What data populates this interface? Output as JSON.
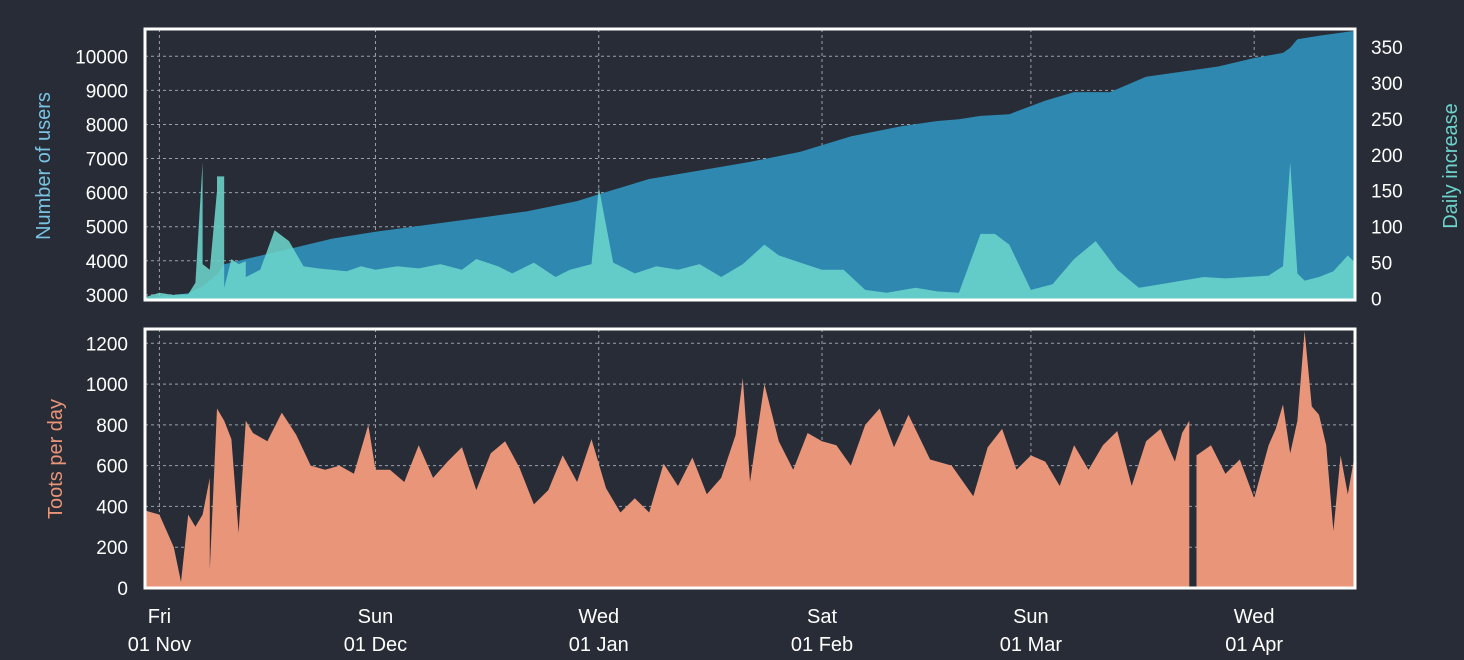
{
  "colors": {
    "background": "#282c36",
    "users": "#2e88b0",
    "daily": "#6bd4cb",
    "toots": "#e8957a",
    "users_axis_label": "#79c3e3",
    "daily_axis_label": "#6bd4cb",
    "toots_axis_label": "#e8957a",
    "frame": "#ffffff",
    "grid": "#9aa0aa"
  },
  "x_axis": {
    "range": [
      "2019-10-30",
      "2020-04-15"
    ],
    "ticks": [
      {
        "date": "2019-11-01",
        "weekday": "Fri",
        "label": "01 Nov"
      },
      {
        "date": "2019-12-01",
        "weekday": "Sun",
        "label": "01 Dec"
      },
      {
        "date": "2020-01-01",
        "weekday": "Wed",
        "label": "01 Jan"
      },
      {
        "date": "2020-02-01",
        "weekday": "Sat",
        "label": "01 Feb"
      },
      {
        "date": "2020-03-01",
        "weekday": "Sun",
        "label": "01 Mar"
      },
      {
        "date": "2020-04-01",
        "weekday": "Wed",
        "label": "01 Apr"
      }
    ]
  },
  "chart_data": [
    {
      "type": "area",
      "ylabel": "Number of users",
      "ylim": [
        2850,
        10800
      ],
      "yticks": [
        "3000",
        "4000",
        "5000",
        "6000",
        "7000",
        "8000",
        "9000",
        "10000"
      ],
      "x": [
        "2019-10-30",
        "2019-11-05",
        "2019-11-06",
        "2019-11-07",
        "2019-11-09",
        "2019-11-10",
        "2019-11-12",
        "2019-11-15",
        "2019-11-20",
        "2019-11-25",
        "2019-12-01",
        "2019-12-08",
        "2019-12-15",
        "2019-12-22",
        "2019-12-29",
        "2020-01-01",
        "2020-01-08",
        "2020-01-15",
        "2020-01-22",
        "2020-01-29",
        "2020-02-05",
        "2020-02-12",
        "2020-02-17",
        "2020-02-20",
        "2020-02-23",
        "2020-02-27",
        "2020-03-03",
        "2020-03-07",
        "2020-03-12",
        "2020-03-17",
        "2020-03-22",
        "2020-03-27",
        "2020-04-01",
        "2020-04-05",
        "2020-04-06",
        "2020-04-07",
        "2020-04-10",
        "2020-04-15"
      ],
      "series": [
        {
          "values": [
            2900,
            3050,
            3150,
            3250,
            3600,
            3900,
            4000,
            4150,
            4400,
            4650,
            4850,
            5050,
            5250,
            5450,
            5750,
            5950,
            6400,
            6650,
            6900,
            7200,
            7650,
            7950,
            8100,
            8150,
            8250,
            8300,
            8700,
            8950,
            8950,
            9400,
            9550,
            9700,
            9950,
            10100,
            10250,
            10500,
            10600,
            10750
          ]
        }
      ]
    },
    {
      "type": "area",
      "ylabel": "Daily increase",
      "ylim": [
        -2,
        375
      ],
      "yticks": [
        "0",
        "50",
        "100",
        "150",
        "200",
        "250",
        "300",
        "350"
      ],
      "x": [
        "2019-10-30",
        "2019-11-01",
        "2019-11-03",
        "2019-11-04",
        "2019-11-05",
        "2019-11-06",
        "2019-11-07",
        "2019-11-07",
        "2019-11-08",
        "2019-11-09",
        "2019-11-09",
        "2019-11-10",
        "2019-11-10",
        "2019-11-11",
        "2019-11-12",
        "2019-11-13",
        "2019-11-13",
        "2019-11-15",
        "2019-11-17",
        "2019-11-19",
        "2019-11-21",
        "2019-11-23",
        "2019-11-25",
        "2019-11-27",
        "2019-11-29",
        "2019-12-01",
        "2019-12-04",
        "2019-12-07",
        "2019-12-10",
        "2019-12-13",
        "2019-12-15",
        "2019-12-18",
        "2019-12-20",
        "2019-12-23",
        "2019-12-26",
        "2019-12-28",
        "2019-12-31",
        "2020-01-01",
        "2020-01-03",
        "2020-01-06",
        "2020-01-09",
        "2020-01-12",
        "2020-01-15",
        "2020-01-18",
        "2020-01-21",
        "2020-01-24",
        "2020-01-26",
        "2020-01-29",
        "2020-02-01",
        "2020-02-04",
        "2020-02-07",
        "2020-02-10",
        "2020-02-14",
        "2020-02-17",
        "2020-02-20",
        "2020-02-23",
        "2020-02-25",
        "2020-02-27",
        "2020-03-01",
        "2020-03-04",
        "2020-03-07",
        "2020-03-10",
        "2020-03-13",
        "2020-03-16",
        "2020-03-19",
        "2020-03-22",
        "2020-03-25",
        "2020-03-28",
        "2020-03-31",
        "2020-04-03",
        "2020-04-05",
        "2020-04-06",
        "2020-04-07",
        "2020-04-08",
        "2020-04-10",
        "2020-04-12",
        "2020-04-14",
        "2020-04-15"
      ],
      "series": [
        {
          "values": [
            2,
            8,
            5,
            6,
            6,
            22,
            190,
            48,
            40,
            150,
            170,
            170,
            15,
            55,
            48,
            52,
            30,
            40,
            95,
            80,
            45,
            42,
            40,
            38,
            45,
            40,
            45,
            42,
            48,
            40,
            55,
            45,
            35,
            50,
            30,
            40,
            48,
            155,
            50,
            35,
            45,
            40,
            48,
            30,
            48,
            75,
            60,
            50,
            40,
            40,
            12,
            8,
            15,
            10,
            8,
            90,
            90,
            75,
            12,
            20,
            55,
            80,
            40,
            15,
            20,
            25,
            30,
            28,
            30,
            32,
            45,
            190,
            35,
            25,
            30,
            38,
            60,
            50
          ]
        }
      ]
    },
    {
      "type": "area",
      "ylabel": "Toots per day",
      "ylim": [
        0,
        1270
      ],
      "yticks": [
        "0",
        "200",
        "400",
        "600",
        "800",
        "1000",
        "1200"
      ],
      "x": [
        "2019-10-30",
        "2019-11-01",
        "2019-11-02",
        "2019-11-03",
        "2019-11-04",
        "2019-11-05",
        "2019-11-06",
        "2019-11-07",
        "2019-11-08",
        "2019-11-08",
        "2019-11-09",
        "2019-11-10",
        "2019-11-11",
        "2019-11-12",
        "2019-11-13",
        "2019-11-14",
        "2019-11-16",
        "2019-11-18",
        "2019-11-20",
        "2019-11-22",
        "2019-11-24",
        "2019-11-26",
        "2019-11-28",
        "2019-11-30",
        "2019-12-01",
        "2019-12-03",
        "2019-12-05",
        "2019-12-07",
        "2019-12-09",
        "2019-12-11",
        "2019-12-13",
        "2019-12-15",
        "2019-12-17",
        "2019-12-19",
        "2019-12-21",
        "2019-12-23",
        "2019-12-25",
        "2019-12-27",
        "2019-12-29",
        "2019-12-31",
        "2020-01-02",
        "2020-01-04",
        "2020-01-06",
        "2020-01-08",
        "2020-01-10",
        "2020-01-12",
        "2020-01-14",
        "2020-01-16",
        "2020-01-18",
        "2020-01-20",
        "2020-01-21",
        "2020-01-22",
        "2020-01-24",
        "2020-01-26",
        "2020-01-28",
        "2020-01-30",
        "2020-02-01",
        "2020-02-03",
        "2020-02-05",
        "2020-02-07",
        "2020-02-09",
        "2020-02-11",
        "2020-02-13",
        "2020-02-16",
        "2020-02-19",
        "2020-02-22",
        "2020-02-24",
        "2020-02-26",
        "2020-02-28",
        "2020-03-01",
        "2020-03-03",
        "2020-03-05",
        "2020-03-07",
        "2020-03-09",
        "2020-03-11",
        "2020-03-13",
        "2020-03-15",
        "2020-03-17",
        "2020-03-19",
        "2020-03-21",
        "2020-03-22",
        "2020-03-23",
        "2020-03-23",
        "2020-03-24",
        "2020-03-24",
        "2020-03-26",
        "2020-03-28",
        "2020-03-30",
        "2020-04-01",
        "2020-04-03",
        "2020-04-04",
        "2020-04-05",
        "2020-04-06",
        "2020-04-07",
        "2020-04-08",
        "2020-04-09",
        "2020-04-10",
        "2020-04-11",
        "2020-04-12",
        "2020-04-13",
        "2020-04-14",
        "2020-04-15"
      ],
      "series": [
        {
          "values": [
            380,
            360,
            280,
            200,
            30,
            360,
            300,
            360,
            540,
            90,
            880,
            820,
            730,
            270,
            820,
            760,
            720,
            860,
            750,
            600,
            580,
            600,
            560,
            800,
            580,
            580,
            520,
            700,
            540,
            620,
            690,
            480,
            660,
            720,
            590,
            410,
            480,
            650,
            520,
            730,
            490,
            370,
            440,
            370,
            610,
            500,
            640,
            460,
            540,
            750,
            1030,
            520,
            1000,
            720,
            580,
            760,
            720,
            700,
            600,
            800,
            880,
            690,
            850,
            630,
            600,
            450,
            690,
            780,
            580,
            650,
            620,
            500,
            700,
            580,
            700,
            770,
            500,
            720,
            780,
            620,
            760,
            820,
            0,
            0,
            650,
            700,
            560,
            630,
            440,
            700,
            780,
            900,
            660,
            820,
            1260,
            890,
            850,
            700,
            280,
            650,
            460,
            660
          ]
        }
      ]
    }
  ]
}
